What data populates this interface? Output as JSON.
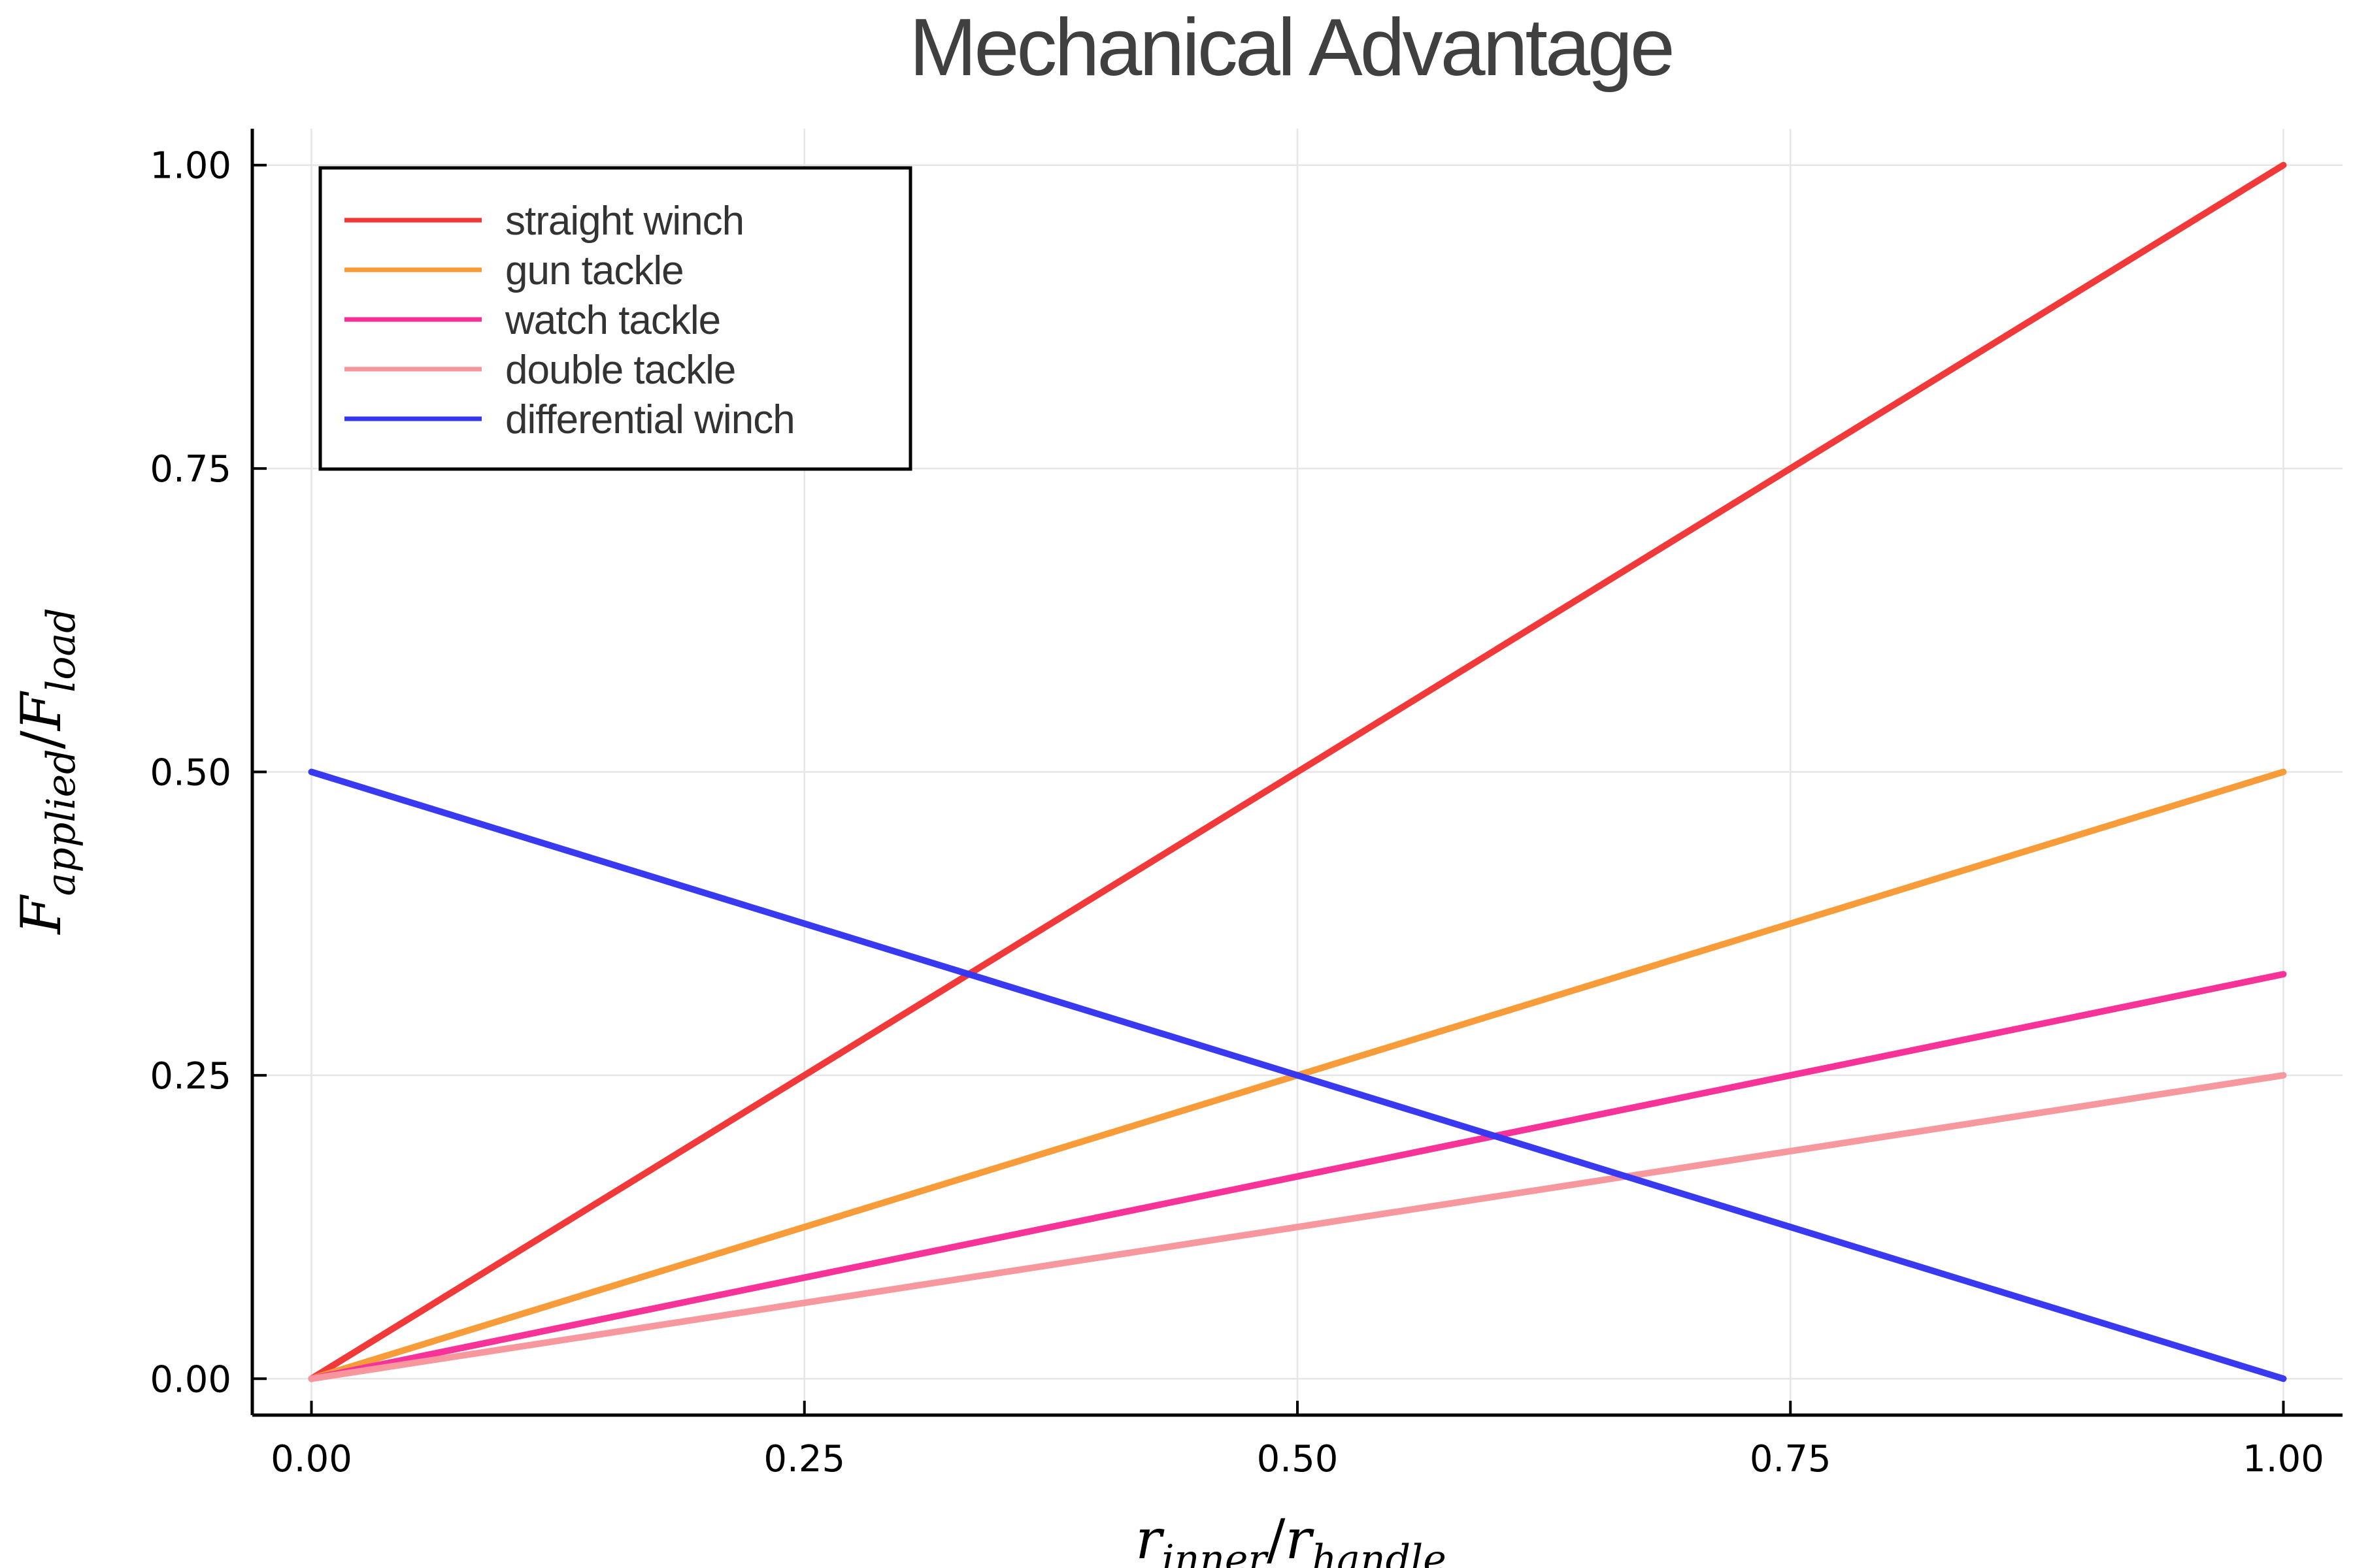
{
  "chart_data": {
    "type": "line",
    "title": "Mechanical Advantage",
    "xlabel": {
      "main": "r",
      "sub1": "inner",
      "sep": "/",
      "main2": "r",
      "sub2": "handle"
    },
    "ylabel": {
      "main": "F",
      "sub1": "applied",
      "sep": "/",
      "main2": "F",
      "sub2": "load"
    },
    "xlim": [
      -0.03,
      1.03
    ],
    "ylim": [
      -0.03,
      1.03
    ],
    "x_ticks": [
      0,
      0.25,
      0.5,
      0.75,
      1.0
    ],
    "x_tick_labels": [
      "0.00",
      "0.25",
      "0.50",
      "0.75",
      "1.00"
    ],
    "y_ticks": [
      0,
      0.25,
      0.5,
      0.75,
      1.0
    ],
    "y_tick_labels": [
      "0.00",
      "0.25",
      "0.50",
      "0.75",
      "1.00"
    ],
    "grid": true,
    "legend_position": "top-left",
    "series": [
      {
        "name": "straight winch",
        "color": "#f23535",
        "x": [
          0,
          1
        ],
        "y": [
          0,
          1
        ]
      },
      {
        "name": "gun tackle",
        "color": "#f79a35",
        "x": [
          0,
          1
        ],
        "y": [
          0,
          0.5
        ]
      },
      {
        "name": "watch tackle",
        "color": "#f72e96",
        "x": [
          0,
          1
        ],
        "y": [
          0,
          0.3333
        ]
      },
      {
        "name": "double tackle",
        "color": "#f7969c",
        "x": [
          0,
          1
        ],
        "y": [
          0,
          0.25
        ]
      },
      {
        "name": "differential winch",
        "color": "#3535f2",
        "x": [
          0,
          1
        ],
        "y": [
          0.5,
          0
        ]
      }
    ]
  }
}
